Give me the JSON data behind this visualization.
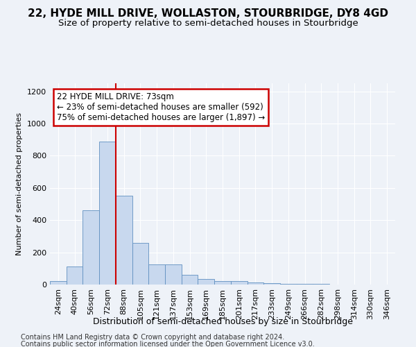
{
  "title": "22, HYDE MILL DRIVE, WOLLASTON, STOURBRIDGE, DY8 4GD",
  "subtitle": "Size of property relative to semi-detached houses in Stourbridge",
  "xlabel": "Distribution of semi-detached houses by size in Stourbridge",
  "ylabel": "Number of semi-detached properties",
  "footer1": "Contains HM Land Registry data © Crown copyright and database right 2024.",
  "footer2": "Contains public sector information licensed under the Open Government Licence v3.0.",
  "bar_labels": [
    "24sqm",
    "40sqm",
    "56sqm",
    "72sqm",
    "88sqm",
    "105sqm",
    "121sqm",
    "137sqm",
    "153sqm",
    "169sqm",
    "185sqm",
    "201sqm",
    "217sqm",
    "233sqm",
    "249sqm",
    "266sqm",
    "282sqm",
    "298sqm",
    "314sqm",
    "330sqm",
    "346sqm"
  ],
  "bar_values": [
    20,
    110,
    460,
    890,
    550,
    260,
    125,
    125,
    60,
    35,
    20,
    20,
    15,
    10,
    5,
    3,
    3,
    2,
    2,
    1,
    1
  ],
  "bar_color": "#c8d8ee",
  "bar_edge_color": "#6090c0",
  "vline_after_bar": 3,
  "annotation_text": "22 HYDE MILL DRIVE: 73sqm\n← 23% of semi-detached houses are smaller (592)\n75% of semi-detached houses are larger (1,897) →",
  "annotation_box_color": "#ffffff",
  "annotation_box_edge_color": "#cc0000",
  "vline_color": "#cc0000",
  "ylim": [
    0,
    1250
  ],
  "yticks": [
    0,
    200,
    400,
    600,
    800,
    1000,
    1200
  ],
  "background_color": "#eef2f8",
  "grid_color": "#ffffff",
  "title_fontsize": 11,
  "subtitle_fontsize": 9.5,
  "xlabel_fontsize": 9,
  "ylabel_fontsize": 8,
  "tick_fontsize": 8,
  "annotation_fontsize": 8.5,
  "footer_fontsize": 7
}
